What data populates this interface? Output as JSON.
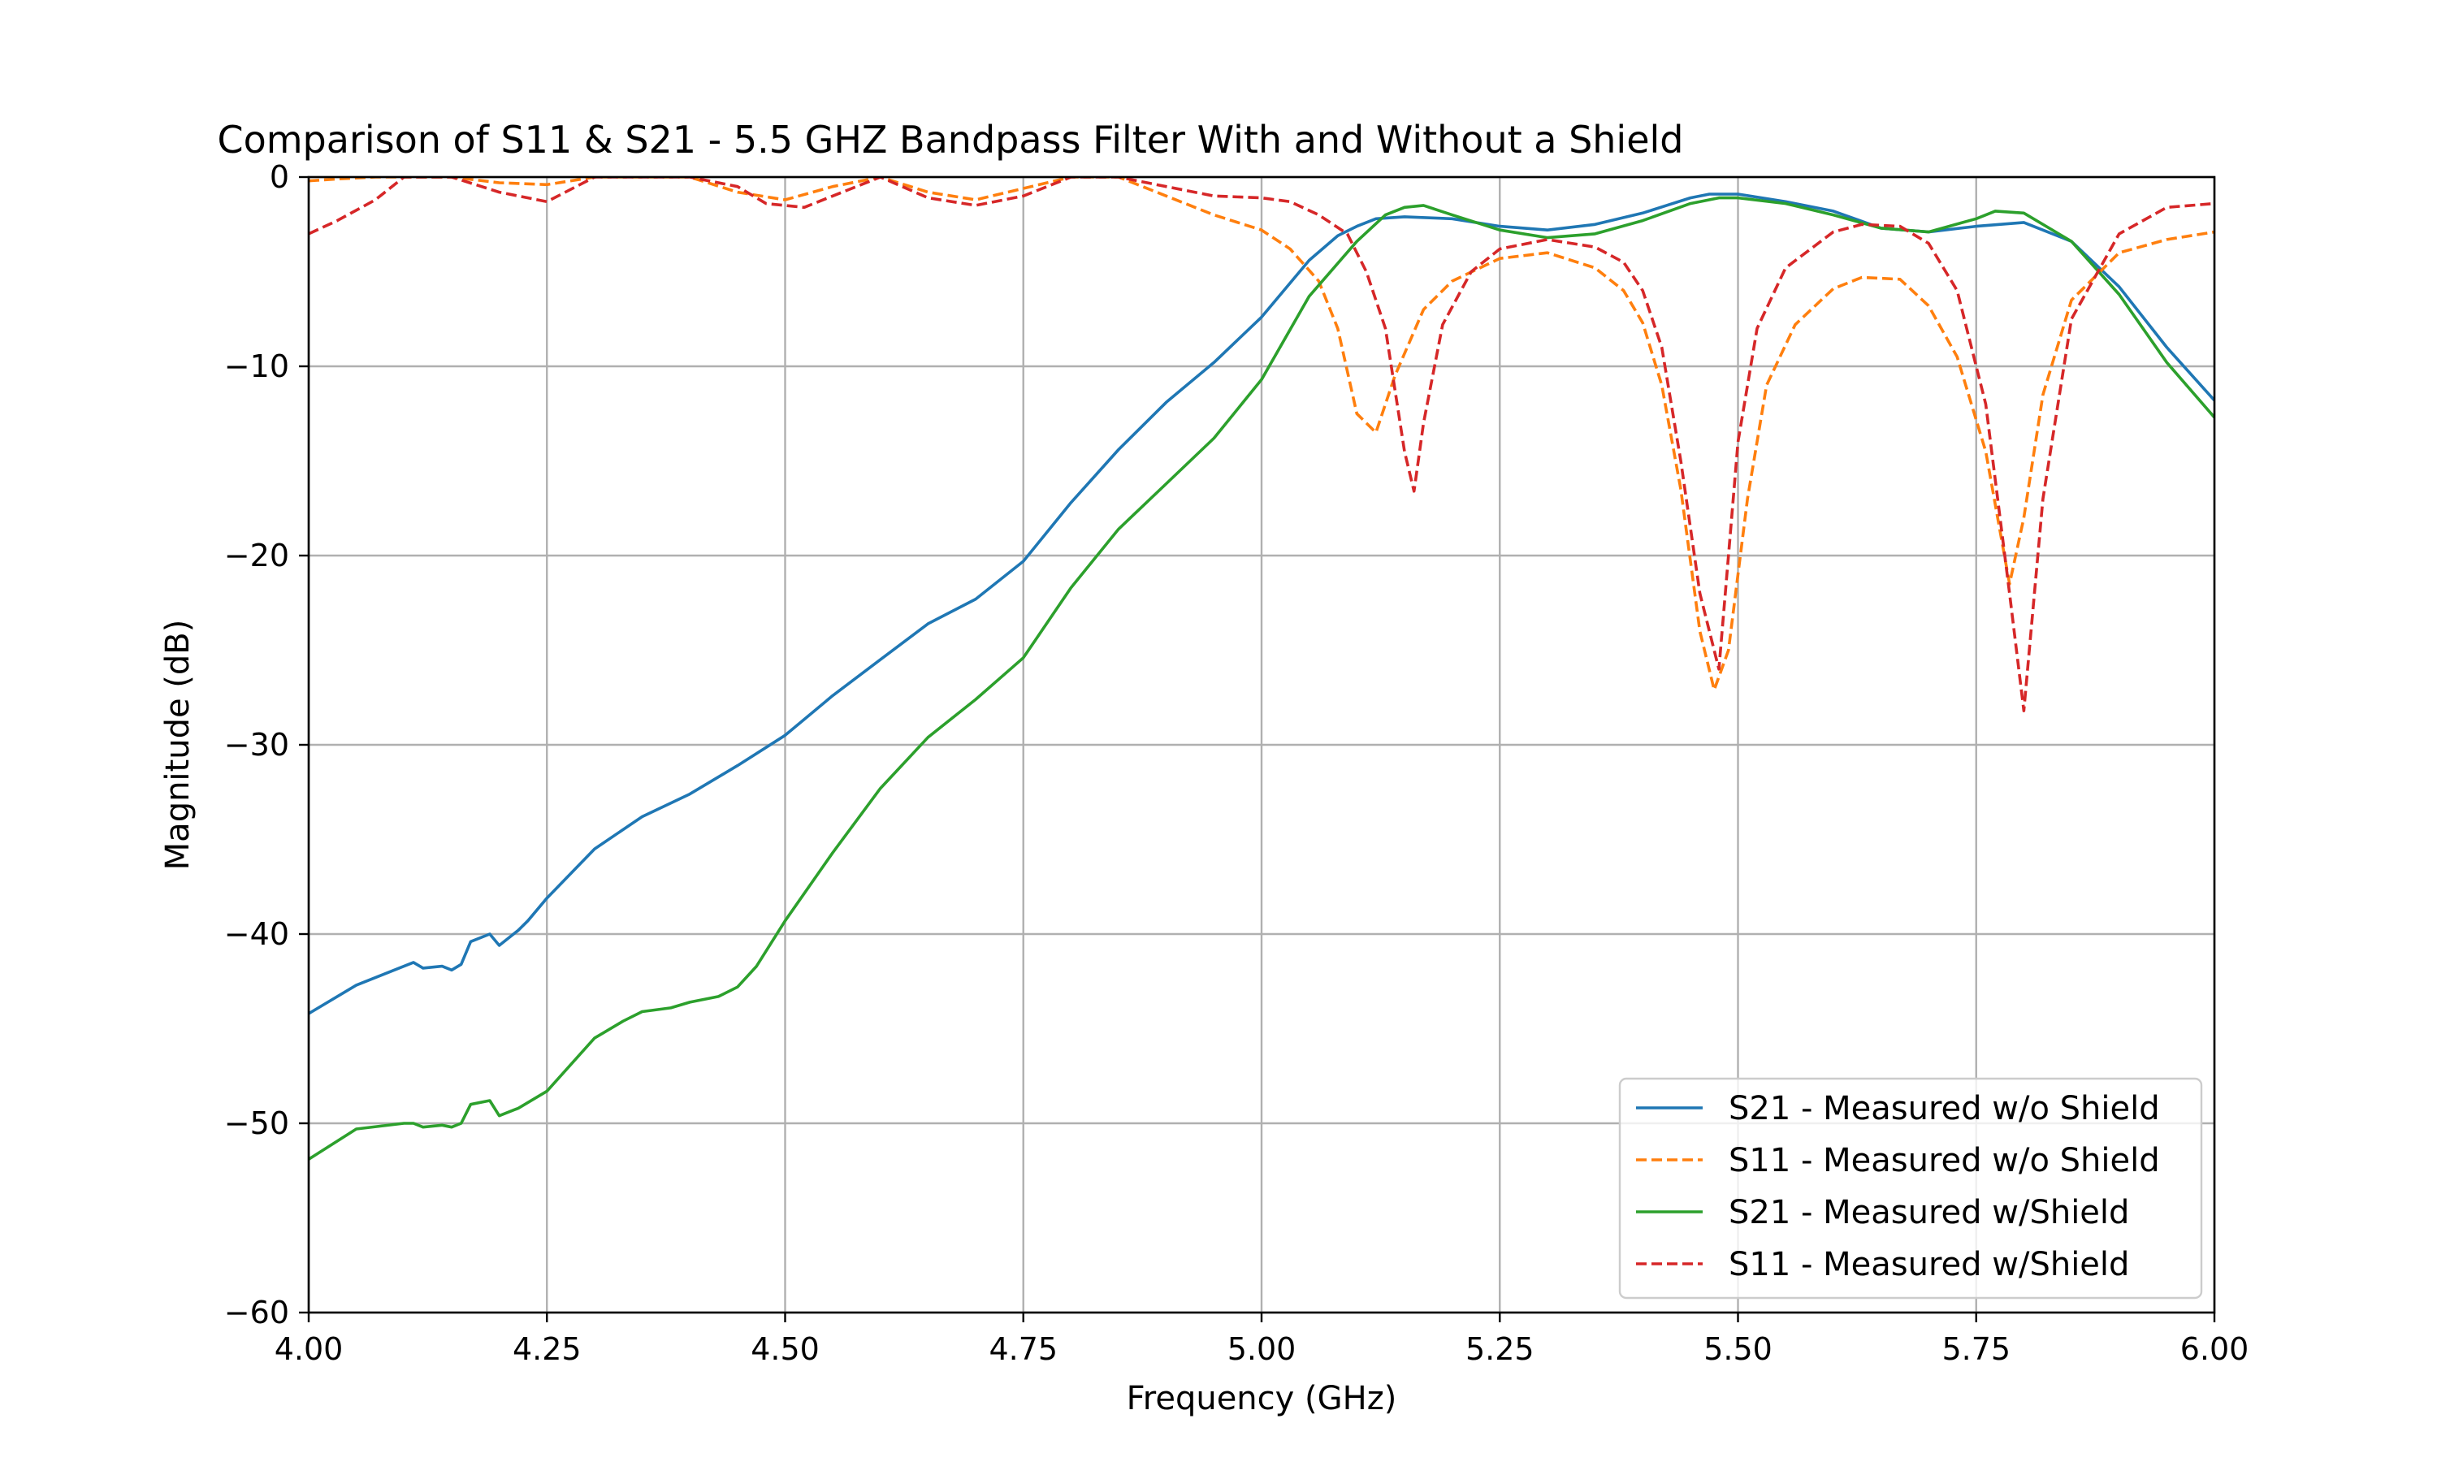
{
  "chart_data": {
    "type": "line",
    "title": "Comparison of S11 & S21 - 5.5 GHZ Bandpass Filter With and Without a Shield",
    "xlabel": "Frequency (GHz)",
    "ylabel": "Magnitude (dB)",
    "xlim": [
      4.0,
      6.0
    ],
    "ylim": [
      -60,
      0
    ],
    "xticks": [
      4.0,
      4.25,
      4.5,
      4.75,
      5.0,
      5.25,
      5.5,
      5.75,
      6.0
    ],
    "xtick_labels": [
      "4.00",
      "4.25",
      "4.50",
      "4.75",
      "5.00",
      "5.25",
      "5.50",
      "5.75",
      "6.00"
    ],
    "yticks": [
      0,
      -10,
      -20,
      -30,
      -40,
      -50,
      -60
    ],
    "ytick_labels": [
      "0",
      "−10",
      "−20",
      "−30",
      "−40",
      "−50",
      "−60"
    ],
    "grid": true,
    "legend_position": "lower-right",
    "series": [
      {
        "name": "S21 - Measured w/o Shield",
        "color": "#1f77b4",
        "dashed": false,
        "x": [
          4.0,
          4.05,
          4.1,
          4.11,
          4.12,
          4.14,
          4.15,
          4.16,
          4.17,
          4.19,
          4.2,
          4.22,
          4.23,
          4.25,
          4.3,
          4.35,
          4.4,
          4.45,
          4.5,
          4.55,
          4.6,
          4.65,
          4.7,
          4.75,
          4.8,
          4.85,
          4.9,
          4.95,
          5.0,
          5.05,
          5.08,
          5.1,
          5.12,
          5.15,
          5.2,
          5.25,
          5.3,
          5.35,
          5.4,
          5.45,
          5.47,
          5.5,
          5.55,
          5.6,
          5.65,
          5.7,
          5.75,
          5.8,
          5.85,
          5.9,
          5.95,
          6.0
        ],
        "y": [
          -44.2,
          -42.7,
          -41.7,
          -41.5,
          -41.8,
          -41.7,
          -41.9,
          -41.6,
          -40.4,
          -40.0,
          -40.6,
          -39.8,
          -39.3,
          -38.1,
          -35.5,
          -33.8,
          -32.6,
          -31.1,
          -29.5,
          -27.4,
          -25.5,
          -23.6,
          -22.3,
          -20.3,
          -17.2,
          -14.4,
          -11.9,
          -9.8,
          -7.4,
          -4.4,
          -3.1,
          -2.6,
          -2.2,
          -2.1,
          -2.2,
          -2.6,
          -2.8,
          -2.5,
          -1.9,
          -1.1,
          -0.9,
          -0.9,
          -1.3,
          -1.8,
          -2.7,
          -2.9,
          -2.6,
          -2.4,
          -3.4,
          -5.8,
          -9.0,
          -11.8
        ]
      },
      {
        "name": "S11 - Measured w/o Shield",
        "color": "#ff7f0e",
        "dashed": true,
        "x": [
          4.0,
          4.03,
          4.07,
          4.1,
          4.15,
          4.2,
          4.25,
          4.3,
          4.35,
          4.4,
          4.45,
          4.5,
          4.55,
          4.6,
          4.65,
          4.7,
          4.75,
          4.8,
          4.85,
          4.9,
          4.95,
          5.0,
          5.03,
          5.06,
          5.08,
          5.1,
          5.12,
          5.14,
          5.17,
          5.2,
          5.25,
          5.3,
          5.35,
          5.38,
          5.4,
          5.42,
          5.44,
          5.46,
          5.475,
          5.49,
          5.51,
          5.53,
          5.56,
          5.6,
          5.63,
          5.67,
          5.7,
          5.73,
          5.76,
          5.785,
          5.8,
          5.82,
          5.85,
          5.9,
          5.95,
          6.0
        ],
        "y": [
          -0.2,
          -0.1,
          0,
          0,
          0,
          -0.3,
          -0.4,
          0,
          0,
          0,
          -0.8,
          -1.2,
          -0.5,
          0,
          -0.8,
          -1.2,
          -0.6,
          0,
          0,
          -1.0,
          -2.0,
          -2.8,
          -3.8,
          -5.5,
          -8.0,
          -12.5,
          -13.5,
          -10.5,
          -7.0,
          -5.5,
          -4.3,
          -4.0,
          -4.8,
          -6.0,
          -7.7,
          -11.0,
          -16.5,
          -24.0,
          -27.1,
          -25.0,
          -17.0,
          -11.0,
          -7.8,
          -5.9,
          -5.3,
          -5.4,
          -6.8,
          -9.5,
          -14.5,
          -21.5,
          -18.0,
          -11.5,
          -6.5,
          -4.0,
          -3.3,
          -2.9
        ]
      },
      {
        "name": "S21 - Measured w/Shield",
        "color": "#2ca02c",
        "dashed": false,
        "x": [
          4.0,
          4.05,
          4.1,
          4.11,
          4.12,
          4.14,
          4.15,
          4.16,
          4.17,
          4.19,
          4.2,
          4.22,
          4.25,
          4.3,
          4.33,
          4.35,
          4.38,
          4.4,
          4.43,
          4.45,
          4.47,
          4.5,
          4.55,
          4.6,
          4.65,
          4.7,
          4.75,
          4.8,
          4.85,
          4.9,
          4.95,
          5.0,
          5.05,
          5.1,
          5.13,
          5.15,
          5.17,
          5.2,
          5.25,
          5.3,
          5.35,
          5.4,
          5.45,
          5.48,
          5.5,
          5.55,
          5.6,
          5.65,
          5.7,
          5.75,
          5.77,
          5.8,
          5.85,
          5.9,
          5.95,
          6.0
        ],
        "y": [
          -51.9,
          -50.3,
          -50.0,
          -50.0,
          -50.2,
          -50.1,
          -50.2,
          -50.0,
          -49.0,
          -48.8,
          -49.6,
          -49.2,
          -48.3,
          -45.5,
          -44.6,
          -44.1,
          -43.9,
          -43.6,
          -43.3,
          -42.8,
          -41.7,
          -39.3,
          -35.7,
          -32.3,
          -29.6,
          -27.6,
          -25.4,
          -21.7,
          -18.6,
          -16.2,
          -13.8,
          -10.7,
          -6.3,
          -3.4,
          -2.0,
          -1.6,
          -1.5,
          -2.0,
          -2.8,
          -3.2,
          -3.0,
          -2.3,
          -1.4,
          -1.1,
          -1.1,
          -1.4,
          -2.0,
          -2.7,
          -2.9,
          -2.2,
          -1.8,
          -1.9,
          -3.4,
          -6.2,
          -9.8,
          -12.7
        ]
      },
      {
        "name": "S11 - Measured w/Shield",
        "color": "#d62728",
        "dashed": true,
        "x": [
          4.0,
          4.03,
          4.07,
          4.1,
          4.15,
          4.2,
          4.25,
          4.3,
          4.35,
          4.4,
          4.45,
          4.48,
          4.52,
          4.55,
          4.6,
          4.65,
          4.7,
          4.75,
          4.8,
          4.85,
          4.9,
          4.95,
          5.0,
          5.03,
          5.06,
          5.09,
          5.11,
          5.13,
          5.15,
          5.16,
          5.17,
          5.19,
          5.22,
          5.25,
          5.3,
          5.35,
          5.38,
          5.4,
          5.42,
          5.44,
          5.46,
          5.48,
          5.49,
          5.5,
          5.52,
          5.55,
          5.6,
          5.63,
          5.67,
          5.7,
          5.73,
          5.76,
          5.785,
          5.8,
          5.82,
          5.85,
          5.9,
          5.95,
          6.0
        ],
        "y": [
          -3.0,
          -2.3,
          -1.2,
          0,
          0,
          -0.8,
          -1.3,
          0,
          0,
          0,
          -0.5,
          -1.4,
          -1.6,
          -1.0,
          0,
          -1.1,
          -1.5,
          -1.0,
          0,
          0,
          -0.5,
          -1.0,
          -1.1,
          -1.3,
          -2.0,
          -3.0,
          -5.0,
          -8.0,
          -14.5,
          -16.6,
          -13.0,
          -7.8,
          -5.0,
          -3.8,
          -3.3,
          -3.7,
          -4.5,
          -6.0,
          -9.0,
          -15.0,
          -22.0,
          -26.0,
          -20.0,
          -14.0,
          -8.0,
          -4.8,
          -2.9,
          -2.5,
          -2.6,
          -3.5,
          -6.0,
          -12.0,
          -22.0,
          -28.2,
          -17.0,
          -7.5,
          -3.0,
          -1.6,
          -1.4
        ]
      }
    ]
  }
}
